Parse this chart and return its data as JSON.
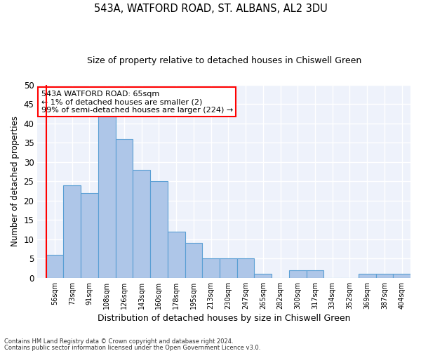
{
  "title1": "543A, WATFORD ROAD, ST. ALBANS, AL2 3DU",
  "title2": "Size of property relative to detached houses in Chiswell Green",
  "xlabel": "Distribution of detached houses by size in Chiswell Green",
  "ylabel": "Number of detached properties",
  "categories": [
    "56sqm",
    "73sqm",
    "91sqm",
    "108sqm",
    "126sqm",
    "143sqm",
    "160sqm",
    "178sqm",
    "195sqm",
    "213sqm",
    "230sqm",
    "247sqm",
    "265sqm",
    "282sqm",
    "300sqm",
    "317sqm",
    "334sqm",
    "352sqm",
    "369sqm",
    "387sqm",
    "404sqm"
  ],
  "values": [
    6,
    24,
    22,
    42,
    36,
    28,
    25,
    12,
    9,
    5,
    5,
    5,
    1,
    0,
    2,
    2,
    0,
    0,
    1,
    1,
    1
  ],
  "bar_color": "#aec6e8",
  "bar_edge_color": "#5a9fd4",
  "annotation_text": "543A WATFORD ROAD: 65sqm\n← 1% of detached houses are smaller (2)\n99% of semi-detached houses are larger (224) →",
  "annotation_box_color": "white",
  "annotation_box_edge": "red",
  "ylim": [
    0,
    50
  ],
  "yticks": [
    0,
    5,
    10,
    15,
    20,
    25,
    30,
    35,
    40,
    45,
    50
  ],
  "bg_color": "#eef2fb",
  "grid_color": "#ffffff",
  "footer1": "Contains HM Land Registry data © Crown copyright and database right 2024.",
  "footer2": "Contains public sector information licensed under the Open Government Licence v3.0."
}
